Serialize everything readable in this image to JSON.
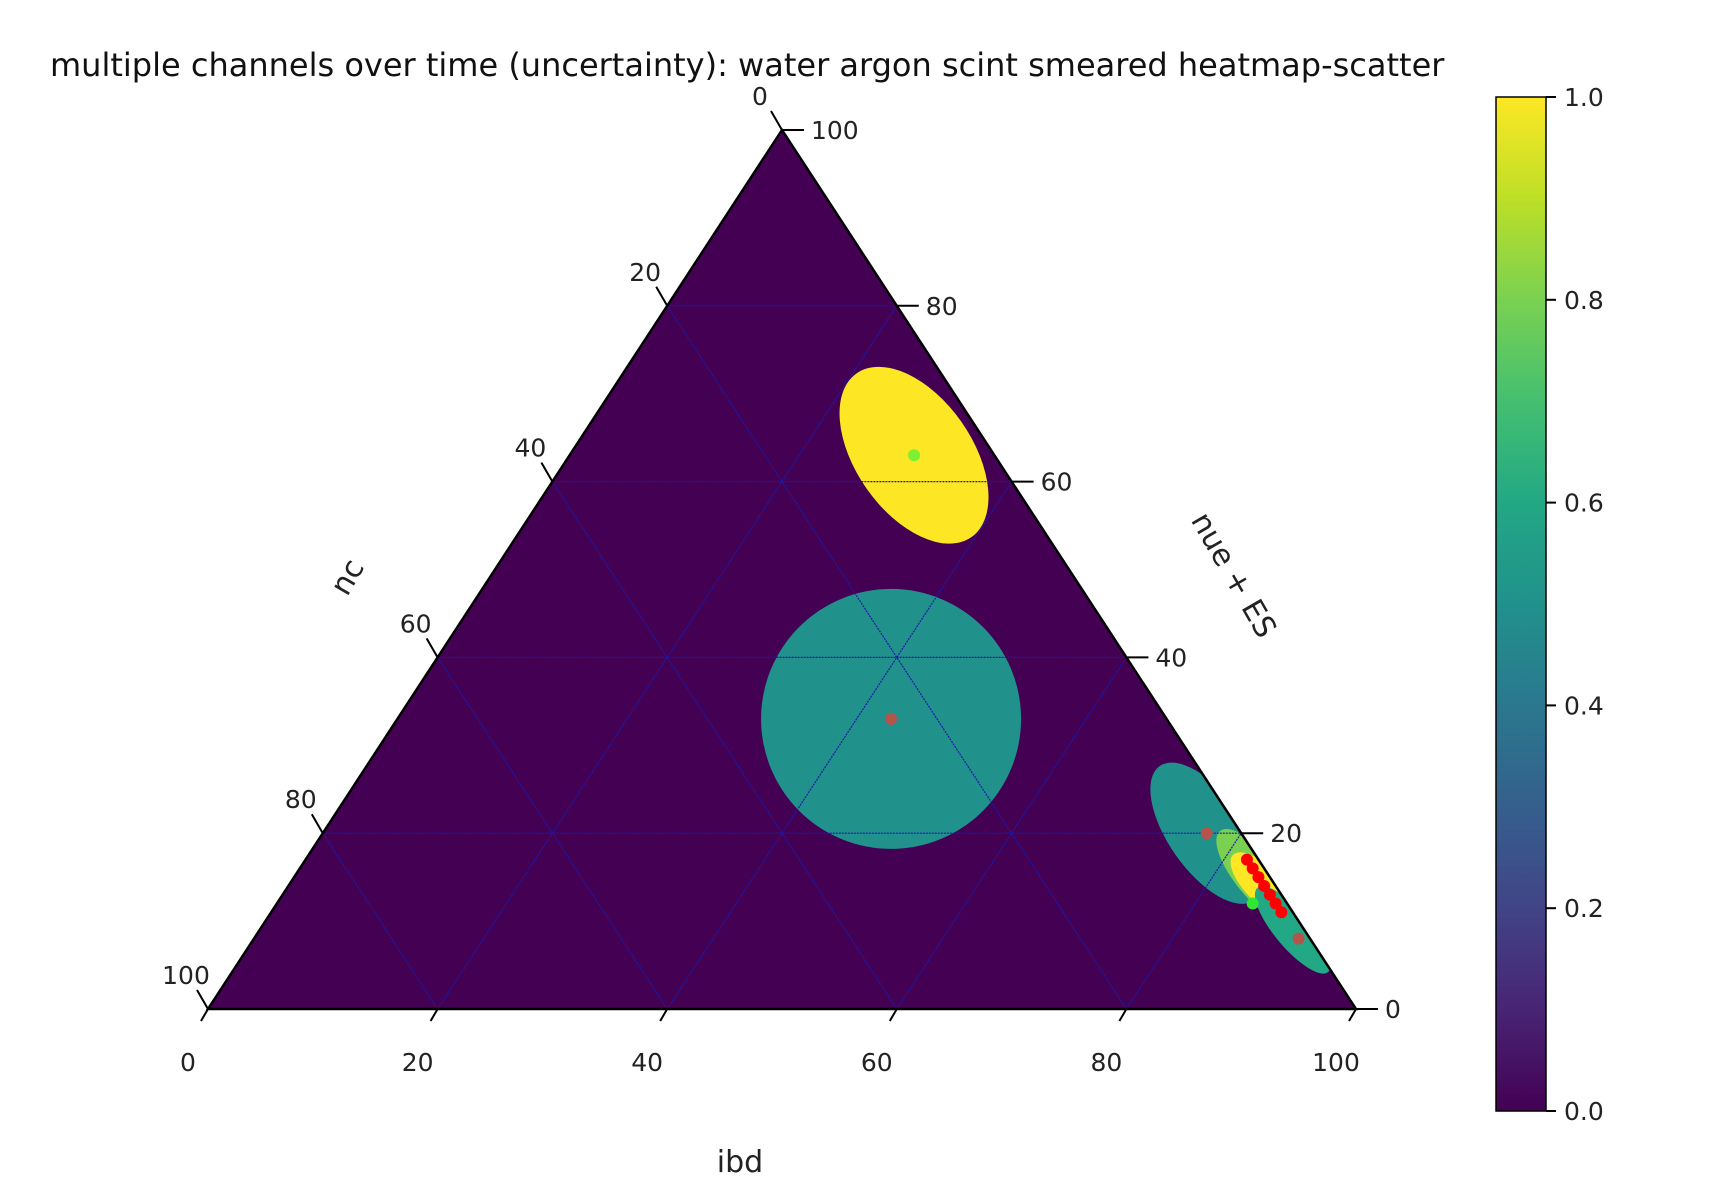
{
  "chart_data": {
    "type": "heatmap",
    "subtype": "ternary heatmap-scatter",
    "title": "multiple channels over time (uncertainty): water argon scint smeared heatmap-scatter",
    "axes": {
      "bottom": {
        "label": "ibd",
        "ticks": [
          "0",
          "20",
          "40",
          "60",
          "80",
          "100"
        ]
      },
      "left": {
        "label": "nc",
        "ticks": [
          "0",
          "20",
          "40",
          "60",
          "80",
          "100"
        ]
      },
      "right": {
        "label": "nue + ES",
        "ticks": [
          "0",
          "20",
          "40",
          "60",
          "80",
          "100"
        ]
      }
    },
    "colorbar": {
      "colormap": "viridis",
      "range": [
        0.0,
        1.0
      ],
      "ticks": [
        "0.0",
        "0.2",
        "0.4",
        "0.6",
        "0.8",
        "1.0"
      ]
    },
    "background_value": 0.0,
    "grid": true,
    "regions": [
      {
        "name": "",
        "value": 1.0,
        "center": {
          "ibd": 30,
          "nc": 7,
          "nue_es": 63
        },
        "shape": "ellipse"
      },
      {
        "name": "",
        "value": 0.5,
        "center": {
          "ibd": 43,
          "nc": 33,
          "nue_es": 33
        },
        "shape": "disk"
      },
      {
        "name": "",
        "value": 0.45,
        "center": {
          "ibd": 77,
          "nc": 3,
          "nue_es": 20
        },
        "shape": "ellipse"
      },
      {
        "name": "",
        "value": 0.75,
        "center": {
          "ibd": 84,
          "nc": 1,
          "nue_es": 15
        },
        "shape": "ellipse"
      },
      {
        "name": "",
        "value": 1.0,
        "center": {
          "ibd": 85,
          "nc": 1,
          "nue_es": 14
        },
        "shape": "ellipse"
      },
      {
        "name": "",
        "value": 0.6,
        "center": {
          "ibd": 90,
          "nc": 1,
          "nue_es": 9
        },
        "shape": "ellipse"
      }
    ],
    "scatter_points": [
      {
        "ibd": 30,
        "nc": 7,
        "nue_es": 63,
        "color": "#7cf032"
      },
      {
        "ibd": 43,
        "nc": 33,
        "nue_es": 33,
        "color": "#b5544a"
      },
      {
        "ibd": 77,
        "nc": 3,
        "nue_es": 20,
        "color": "#b5544a"
      },
      {
        "ibd": 91,
        "nc": 1,
        "nue_es": 8,
        "color": "#b5544a"
      },
      {
        "ibd": 85,
        "nc": 1,
        "nue_es": 12,
        "color": "#32e632"
      },
      {
        "ibd": 82,
        "nc": 1,
        "nue_es": 17,
        "color": "#ff0000"
      },
      {
        "ibd": 83,
        "nc": 1,
        "nue_es": 16,
        "color": "#ff0000"
      },
      {
        "ibd": 84,
        "nc": 1,
        "nue_es": 15,
        "color": "#ff0000"
      },
      {
        "ibd": 85,
        "nc": 1,
        "nue_es": 14,
        "color": "#ff0000"
      },
      {
        "ibd": 86,
        "nc": 1,
        "nue_es": 13,
        "color": "#ff0000"
      },
      {
        "ibd": 87,
        "nc": 1,
        "nue_es": 12,
        "color": "#ff0000"
      },
      {
        "ibd": 88,
        "nc": 1,
        "nue_es": 11,
        "color": "#ff0000"
      }
    ]
  }
}
